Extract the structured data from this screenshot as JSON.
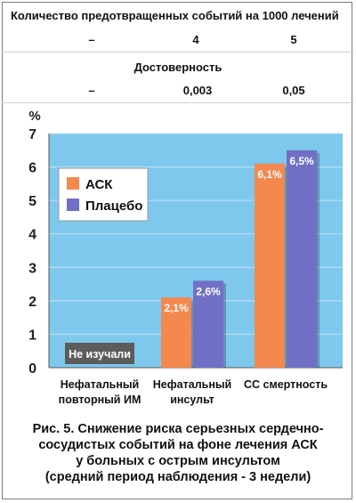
{
  "header": {
    "events_title": "Количество предотвращенных событий на 1000 лечений",
    "events_values": [
      "–",
      "4",
      "5"
    ],
    "significance_title": "Достоверность",
    "significance_values": [
      "–",
      "0,003",
      "0,05"
    ]
  },
  "chart_data": {
    "type": "bar",
    "ylabel": "%",
    "ylim": [
      0,
      7
    ],
    "yticks": [
      0,
      1,
      2,
      3,
      4,
      5,
      6,
      7
    ],
    "grid": true,
    "legend_position": "upper-left",
    "categories": [
      [
        "Нефатальный",
        "повторный ИМ"
      ],
      [
        "Нефатальный",
        "инсульт"
      ],
      [
        "СС смертность"
      ]
    ],
    "series": [
      {
        "name": "АСК",
        "color": "#f4884f",
        "values": [
          null,
          2.1,
          6.1
        ],
        "labels": [
          "",
          "2,1%",
          "6,1%"
        ]
      },
      {
        "name": "Плацебо",
        "color": "#7070c4",
        "values": [
          null,
          2.6,
          6.5
        ],
        "labels": [
          "",
          "2,6%",
          "6,5%"
        ]
      }
    ],
    "annotations": [
      {
        "category_index": 0,
        "text": "Не изучали",
        "color": "#5c5c5c"
      }
    ]
  },
  "colors": {
    "plot_background": "#7ec8ee",
    "grid": "#c2e3f5",
    "axis": "#555555"
  },
  "caption": {
    "lines": [
      "Рис. 5. Снижение риска серьезных сердечно-",
      "сосудистых событий на фоне лечения АСК",
      "у больных с острым инсультом",
      "(средний период наблюдения - 3 недели)"
    ]
  }
}
